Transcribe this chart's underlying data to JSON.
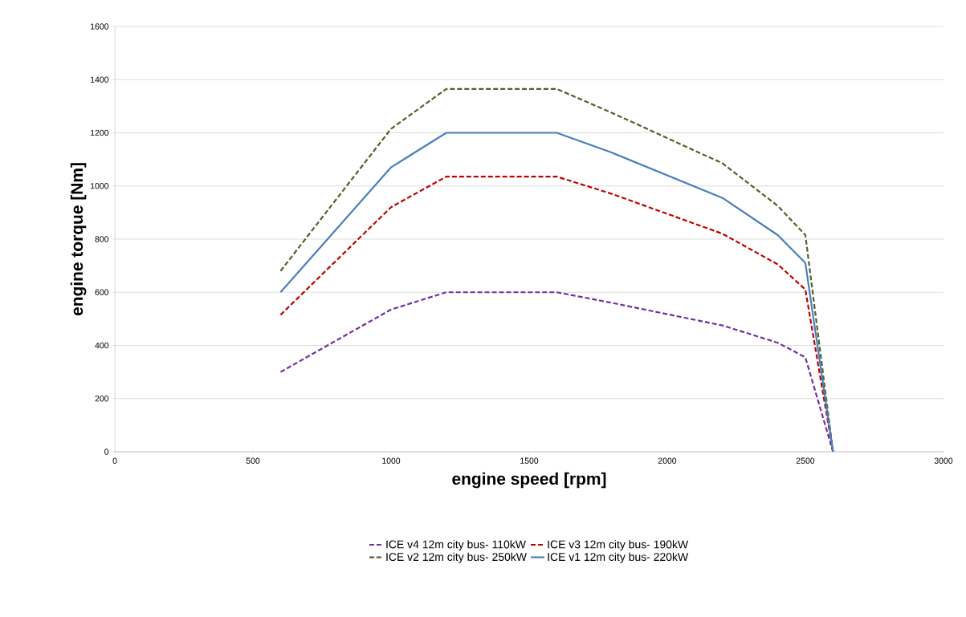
{
  "chart_data": {
    "type": "line",
    "xlabel": "engine speed [rpm]",
    "ylabel": "engine torque [Nm]",
    "xlim": [
      0,
      3000
    ],
    "xticks": [
      0,
      500,
      1000,
      1500,
      2000,
      2500,
      3000
    ],
    "ylim": [
      0,
      1600
    ],
    "yticks": [
      0,
      200,
      400,
      600,
      800,
      1000,
      1200,
      1400,
      1600
    ],
    "grid": "y",
    "legend": "bottom",
    "marker": "none",
    "x": [
      600,
      1000,
      1200,
      1600,
      1800,
      2200,
      2400,
      2500,
      2600
    ],
    "series": [
      {
        "name": "ICE v4 12m city bus- 110kW",
        "color": "#7030a0",
        "line_style": "dashed",
        "values": [
          300,
          535,
          600,
          600,
          560,
          475,
          410,
          355,
          0
        ]
      },
      {
        "name": "ICE v3 12m city bus- 190kW",
        "color": "#c00000",
        "line_style": "dashed",
        "values": [
          515,
          920,
          1035,
          1035,
          970,
          820,
          705,
          610,
          0
        ]
      },
      {
        "name": "ICE v2 12m city bus- 250kW",
        "color": "#4f6228",
        "line_style": "dashed",
        "values": [
          680,
          1215,
          1365,
          1365,
          1275,
          1085,
          925,
          815,
          0
        ]
      },
      {
        "name": "ICE v1 12m city bus- 220kW",
        "color": "#4a7ebb",
        "line_style": "solid",
        "values": [
          600,
          1070,
          1200,
          1200,
          1125,
          955,
          815,
          710,
          0
        ]
      }
    ]
  }
}
